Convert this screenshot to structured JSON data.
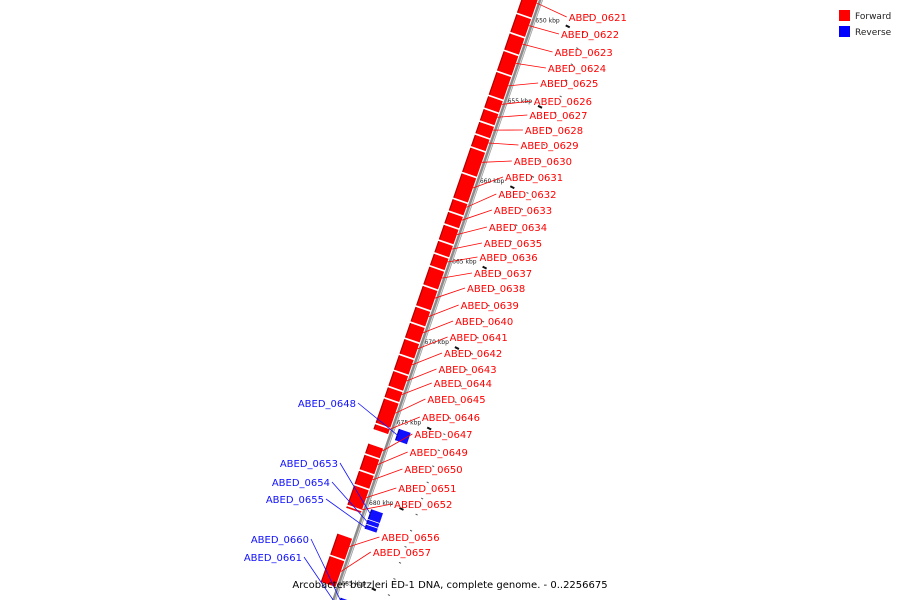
{
  "legend": {
    "items": [
      {
        "label": "Forward",
        "color": "#ff0000"
      },
      {
        "label": "Reverse",
        "color": "#0000ff"
      }
    ]
  },
  "caption": "Arcobacter butzleri ED-1 DNA, complete genome. - 0..2256675",
  "colors": {
    "forward": "#ff0000",
    "forward_dark": "#b00000",
    "reverse": "#1010ff",
    "reverse_dark": "#0000a0",
    "backbone": "#8c8c8c"
  },
  "view": {
    "start_kbp": 648.7,
    "end_kbp": 686.8
  },
  "ticks": [
    {
      "kbp": 650,
      "label": "650 kbp"
    },
    {
      "kbp": 655,
      "label": "655 kbp"
    },
    {
      "kbp": 660,
      "label": "660 kbp"
    },
    {
      "kbp": 665,
      "label": "665 kbp"
    },
    {
      "kbp": 670,
      "label": "670 kbp"
    },
    {
      "kbp": 675,
      "label": "675 kbp"
    },
    {
      "kbp": 680,
      "label": "680 kbp"
    },
    {
      "kbp": 685,
      "label": "685 kbp"
    }
  ],
  "genes": [
    {
      "id": "ABED_0621",
      "strand": "forward",
      "start_kbp": 648.7,
      "end_kbp": 650.2
    },
    {
      "id": "ABED_0622",
      "strand": "forward",
      "start_kbp": 650.3,
      "end_kbp": 651.4
    },
    {
      "id": "ABED_0623",
      "strand": "forward",
      "start_kbp": 651.5,
      "end_kbp": 652.5
    },
    {
      "id": "ABED_0624",
      "strand": "forward",
      "start_kbp": 652.6,
      "end_kbp": 653.8
    },
    {
      "id": "ABED_0625",
      "strand": "forward",
      "start_kbp": 653.9,
      "end_kbp": 655.3
    },
    {
      "id": "ABED_0626",
      "strand": "forward",
      "start_kbp": 655.4,
      "end_kbp": 656.1
    },
    {
      "id": "ABED_0627",
      "strand": "forward",
      "start_kbp": 656.2,
      "end_kbp": 656.9
    },
    {
      "id": "ABED_0628",
      "strand": "forward",
      "start_kbp": 657.0,
      "end_kbp": 657.7
    },
    {
      "id": "ABED_0629",
      "strand": "forward",
      "start_kbp": 657.8,
      "end_kbp": 658.5
    },
    {
      "id": "ABED_0630",
      "strand": "forward",
      "start_kbp": 658.6,
      "end_kbp": 660.1
    },
    {
      "id": "ABED_0631",
      "strand": "forward",
      "start_kbp": 660.2,
      "end_kbp": 661.7
    },
    {
      "id": "ABED_0632",
      "strand": "forward",
      "start_kbp": 661.8,
      "end_kbp": 662.5
    },
    {
      "id": "ABED_0633",
      "strand": "forward",
      "start_kbp": 662.6,
      "end_kbp": 663.3
    },
    {
      "id": "ABED_0634",
      "strand": "forward",
      "start_kbp": 663.4,
      "end_kbp": 664.3
    },
    {
      "id": "ABED_0635",
      "strand": "forward",
      "start_kbp": 664.4,
      "end_kbp": 665.1
    },
    {
      "id": "ABED_0636",
      "strand": "forward",
      "start_kbp": 665.2,
      "end_kbp": 665.9
    },
    {
      "id": "ABED_0637",
      "strand": "forward",
      "start_kbp": 666.0,
      "end_kbp": 667.1
    },
    {
      "id": "ABED_0638",
      "strand": "forward",
      "start_kbp": 667.2,
      "end_kbp": 668.4
    },
    {
      "id": "ABED_0639",
      "strand": "forward",
      "start_kbp": 668.5,
      "end_kbp": 669.4
    },
    {
      "id": "ABED_0640",
      "strand": "forward",
      "start_kbp": 669.5,
      "end_kbp": 670.4
    },
    {
      "id": "ABED_0641",
      "strand": "forward",
      "start_kbp": 670.5,
      "end_kbp": 671.4
    },
    {
      "id": "ABED_0642",
      "strand": "forward",
      "start_kbp": 671.5,
      "end_kbp": 672.4
    },
    {
      "id": "ABED_0643",
      "strand": "forward",
      "start_kbp": 672.5,
      "end_kbp": 673.4
    },
    {
      "id": "ABED_0644",
      "strand": "forward",
      "start_kbp": 673.5,
      "end_kbp": 674.1
    },
    {
      "id": "ABED_0645",
      "strand": "forward",
      "start_kbp": 674.2,
      "end_kbp": 675.7
    },
    {
      "id": "ABED_0646",
      "strand": "forward",
      "start_kbp": 675.8,
      "end_kbp": 676.1
    },
    {
      "id": "ABED_0648",
      "strand": "reverse",
      "start_kbp": 675.6,
      "end_kbp": 676.3
    },
    {
      "id": "ABED_0647",
      "strand": "forward",
      "start_kbp": 677.0,
      "end_kbp": 677.6
    },
    {
      "id": "ABED_0649",
      "strand": "forward",
      "start_kbp": 677.7,
      "end_kbp": 678.6
    },
    {
      "id": "ABED_0650",
      "strand": "forward",
      "start_kbp": 678.7,
      "end_kbp": 679.5
    },
    {
      "id": "ABED_0651",
      "strand": "forward",
      "start_kbp": 679.6,
      "end_kbp": 680.8
    },
    {
      "id": "ABED_0653",
      "strand": "reverse",
      "start_kbp": 680.6,
      "end_kbp": 681.2
    },
    {
      "id": "ABED_0654",
      "strand": "reverse",
      "start_kbp": 681.25,
      "end_kbp": 681.5
    },
    {
      "id": "ABED_0655",
      "strand": "reverse",
      "start_kbp": 681.55,
      "end_kbp": 681.8
    },
    {
      "id": "ABED_0652",
      "strand": "forward",
      "start_kbp": 680.9,
      "end_kbp": 681.0
    },
    {
      "id": "ABED_0656",
      "strand": "forward",
      "start_kbp": 682.6,
      "end_kbp": 683.9
    },
    {
      "id": "ABED_0657",
      "strand": "forward",
      "start_kbp": 684.0,
      "end_kbp": 685.6
    },
    {
      "id": "ABED_0660",
      "strand": "reverse",
      "start_kbp": 686.1,
      "end_kbp": 686.5
    },
    {
      "id": "ABED_0661",
      "strand": "reverse",
      "start_kbp": 686.6,
      "end_kbp": 686.8
    }
  ]
}
